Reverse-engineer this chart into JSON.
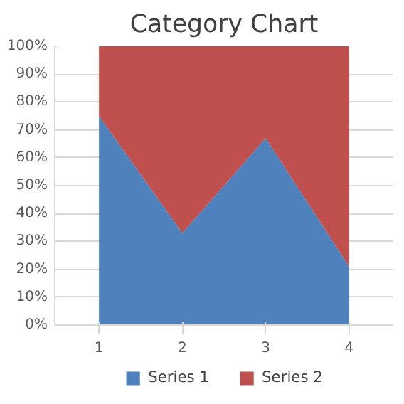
{
  "chart_data": {
    "type": "area",
    "title": "Category Chart",
    "categories": [
      "1",
      "2",
      "3",
      "4"
    ],
    "stacked": true,
    "series": [
      {
        "name": "Series 1",
        "color": "#4f81bd",
        "values": [
          75,
          33,
          67,
          21
        ]
      },
      {
        "name": "Series 2",
        "color": "#c0504d",
        "values": [
          25,
          67,
          33,
          79
        ]
      }
    ],
    "ylim": [
      0,
      100
    ],
    "yticks": [
      {
        "value": 0,
        "label": "0%"
      },
      {
        "value": 10,
        "label": "10%"
      },
      {
        "value": 20,
        "label": "20%"
      },
      {
        "value": 30,
        "label": "30%"
      },
      {
        "value": 40,
        "label": "40%"
      },
      {
        "value": 50,
        "label": "50%"
      },
      {
        "value": 60,
        "label": "60%"
      },
      {
        "value": 70,
        "label": "70%"
      },
      {
        "value": 80,
        "label": "80%"
      },
      {
        "value": 90,
        "label": "90%"
      },
      {
        "value": 100,
        "label": "100%"
      }
    ],
    "grid": "y",
    "legend": "bottom"
  }
}
